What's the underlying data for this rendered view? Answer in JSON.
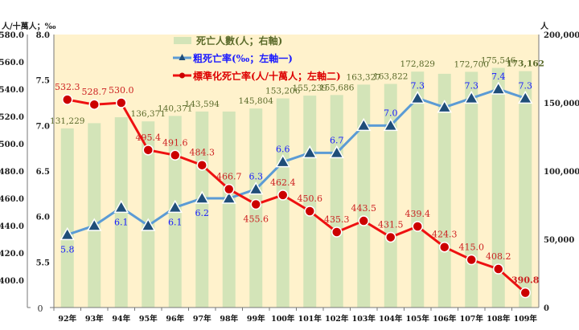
{
  "chart_data": {
    "type": "bar+line",
    "title": "",
    "categories": [
      "92年",
      "93年",
      "94年",
      "95年",
      "96年",
      "97年",
      "98年",
      "99年",
      "100年",
      "101年",
      "102年",
      "103年",
      "104年",
      "105年",
      "106年",
      "107年",
      "108年",
      "109年"
    ],
    "series": [
      {
        "name": "死亡人數(人；右軸)",
        "type": "bar",
        "axis": "right",
        "color": "#d3e4b8",
        "values": [
          131229,
          135071,
          139398,
          136371,
          140371,
          143594,
          143582,
          145804,
          153206,
          155239,
          155686,
          163327,
          163822,
          172829,
          171242,
          172700,
          175546,
          173162
        ],
        "labels": [
          "131,229",
          "",
          "",
          "136,371",
          "140,371",
          "143,594",
          "",
          "145,804",
          "153,206",
          "155,239",
          "155,686",
          "163,327",
          "163,822",
          "172,829",
          "",
          "172,700",
          "175,546",
          "173,162"
        ]
      },
      {
        "name": "粗死亡率(‰；左軸一)",
        "type": "line",
        "axis": "left1",
        "color": "#5b9bd5",
        "marker": "triangle",
        "marker_color": "#1f4e79",
        "values": [
          5.8,
          5.9,
          6.1,
          5.9,
          6.1,
          6.2,
          6.2,
          6.3,
          6.6,
          6.7,
          6.7,
          7.0,
          7.0,
          7.3,
          7.2,
          7.3,
          7.4,
          7.3
        ],
        "labels": [
          "5.8",
          "",
          "6.1",
          "",
          "6.1",
          "6.2",
          "",
          "6.3",
          "6.6",
          "",
          "6.7",
          "",
          "7.0",
          "7.3",
          "",
          "7.3",
          "7.4",
          "7.3"
        ]
      },
      {
        "name": "標準化死亡率(人/十萬人；左軸二)",
        "type": "line",
        "axis": "left2",
        "color": "#ee1111",
        "marker": "circle",
        "marker_color": "#cc0000",
        "values": [
          532.3,
          528.7,
          530.0,
          495.4,
          491.6,
          484.3,
          466.7,
          455.6,
          462.4,
          450.6,
          435.3,
          443.5,
          431.5,
          439.4,
          424.3,
          415.0,
          408.2,
          390.8
        ],
        "labels": [
          "532.3",
          "528.7",
          "530.0",
          "495.4",
          "491.6",
          "484.3",
          "466.7",
          "455.6",
          "462.4",
          "450.6",
          "435.3",
          "443.5",
          "431.5",
          "439.4",
          "424.3",
          "415.0",
          "408.2",
          "390.8"
        ]
      }
    ],
    "axes": {
      "right": {
        "min": 0,
        "max": 200000,
        "ticks": [
          "0",
          "50,000",
          "100,000",
          "150,000",
          "200,000"
        ],
        "unit": "人"
      },
      "left1": {
        "min": 5.0,
        "max": 8.0,
        "ticks": [
          "5.0",
          "5.5",
          "6.0",
          "6.5",
          "7.0",
          "7.5",
          "8.0"
        ],
        "unit": "‰"
      },
      "left2": {
        "min": 380,
        "max": 580,
        "ticks": [
          "400.0",
          "420.0",
          "440.0",
          "460.0",
          "480.0",
          "500.0",
          "520.0",
          "540.0",
          "560.0",
          "580.0"
        ],
        "unit": "人/十萬人"
      },
      "left_zero": "0"
    },
    "legend": {
      "position": "top-center",
      "entries": [
        {
          "label": "死亡人數(人；右軸)",
          "color": "#5a6a2a"
        },
        {
          "label": "粗死亡率(‰；左軸一)",
          "color": "#1a1aff"
        },
        {
          "label": "標準化死亡率(人/十萬人；左軸二)",
          "color": "#dd0000"
        }
      ]
    },
    "grid": false
  }
}
